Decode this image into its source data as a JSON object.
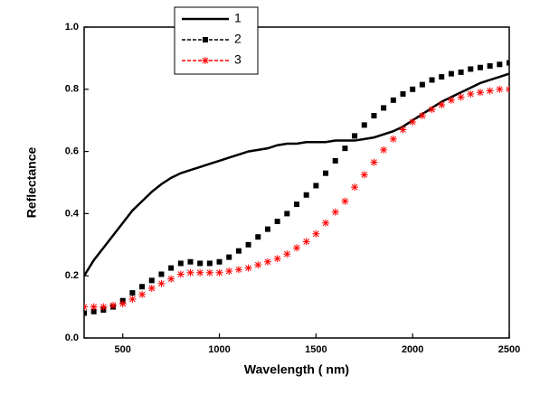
{
  "chart_data": {
    "type": "line",
    "x_label": "Wavelength ( nm)",
    "y_label": "Reflectance",
    "x": [
      300,
      350,
      400,
      450,
      500,
      550,
      600,
      650,
      700,
      750,
      800,
      850,
      900,
      950,
      1000,
      1050,
      1100,
      1150,
      1200,
      1250,
      1300,
      1350,
      1400,
      1450,
      1500,
      1550,
      1600,
      1650,
      1700,
      1750,
      1800,
      1850,
      1900,
      1950,
      2000,
      2050,
      2100,
      2150,
      2200,
      2250,
      2300,
      2350,
      2400,
      2450,
      2500
    ],
    "series": [
      {
        "name": "1",
        "color": "#000000",
        "marker": "none",
        "values": [
          0.2,
          0.25,
          0.29,
          0.33,
          0.37,
          0.41,
          0.44,
          0.47,
          0.495,
          0.515,
          0.53,
          0.54,
          0.55,
          0.56,
          0.57,
          0.58,
          0.59,
          0.6,
          0.605,
          0.61,
          0.62,
          0.625,
          0.625,
          0.63,
          0.63,
          0.63,
          0.635,
          0.635,
          0.635,
          0.64,
          0.645,
          0.655,
          0.665,
          0.68,
          0.7,
          0.72,
          0.74,
          0.76,
          0.775,
          0.79,
          0.805,
          0.82,
          0.83,
          0.84,
          0.85
        ]
      },
      {
        "name": "2",
        "color": "#000000",
        "marker": "square",
        "values": [
          0.08,
          0.085,
          0.09,
          0.1,
          0.12,
          0.145,
          0.165,
          0.185,
          0.205,
          0.225,
          0.24,
          0.245,
          0.24,
          0.24,
          0.245,
          0.26,
          0.28,
          0.3,
          0.325,
          0.35,
          0.375,
          0.4,
          0.43,
          0.46,
          0.49,
          0.53,
          0.57,
          0.61,
          0.65,
          0.685,
          0.715,
          0.74,
          0.765,
          0.785,
          0.8,
          0.815,
          0.83,
          0.84,
          0.85,
          0.855,
          0.865,
          0.87,
          0.875,
          0.88,
          0.885
        ]
      },
      {
        "name": "3",
        "color": "#ff0000",
        "marker": "asterisk",
        "values": [
          0.1,
          0.1,
          0.1,
          0.105,
          0.11,
          0.125,
          0.14,
          0.16,
          0.175,
          0.19,
          0.205,
          0.21,
          0.21,
          0.21,
          0.21,
          0.215,
          0.22,
          0.225,
          0.235,
          0.245,
          0.255,
          0.27,
          0.29,
          0.31,
          0.335,
          0.37,
          0.405,
          0.44,
          0.485,
          0.525,
          0.565,
          0.605,
          0.64,
          0.67,
          0.695,
          0.715,
          0.735,
          0.75,
          0.765,
          0.775,
          0.785,
          0.79,
          0.795,
          0.8,
          0.8
        ]
      }
    ],
    "xlim": [
      300,
      2500
    ],
    "xticks": [
      500,
      1000,
      1500,
      2000,
      2500
    ],
    "ylim": [
      0,
      1.0
    ],
    "yticks": [
      {
        "value": 0,
        "label": "0.0"
      },
      0.2,
      0.4,
      0.6,
      0.8,
      {
        "value": 1.0,
        "label": "1.0"
      }
    ],
    "grid": false,
    "legend": "upper left"
  }
}
